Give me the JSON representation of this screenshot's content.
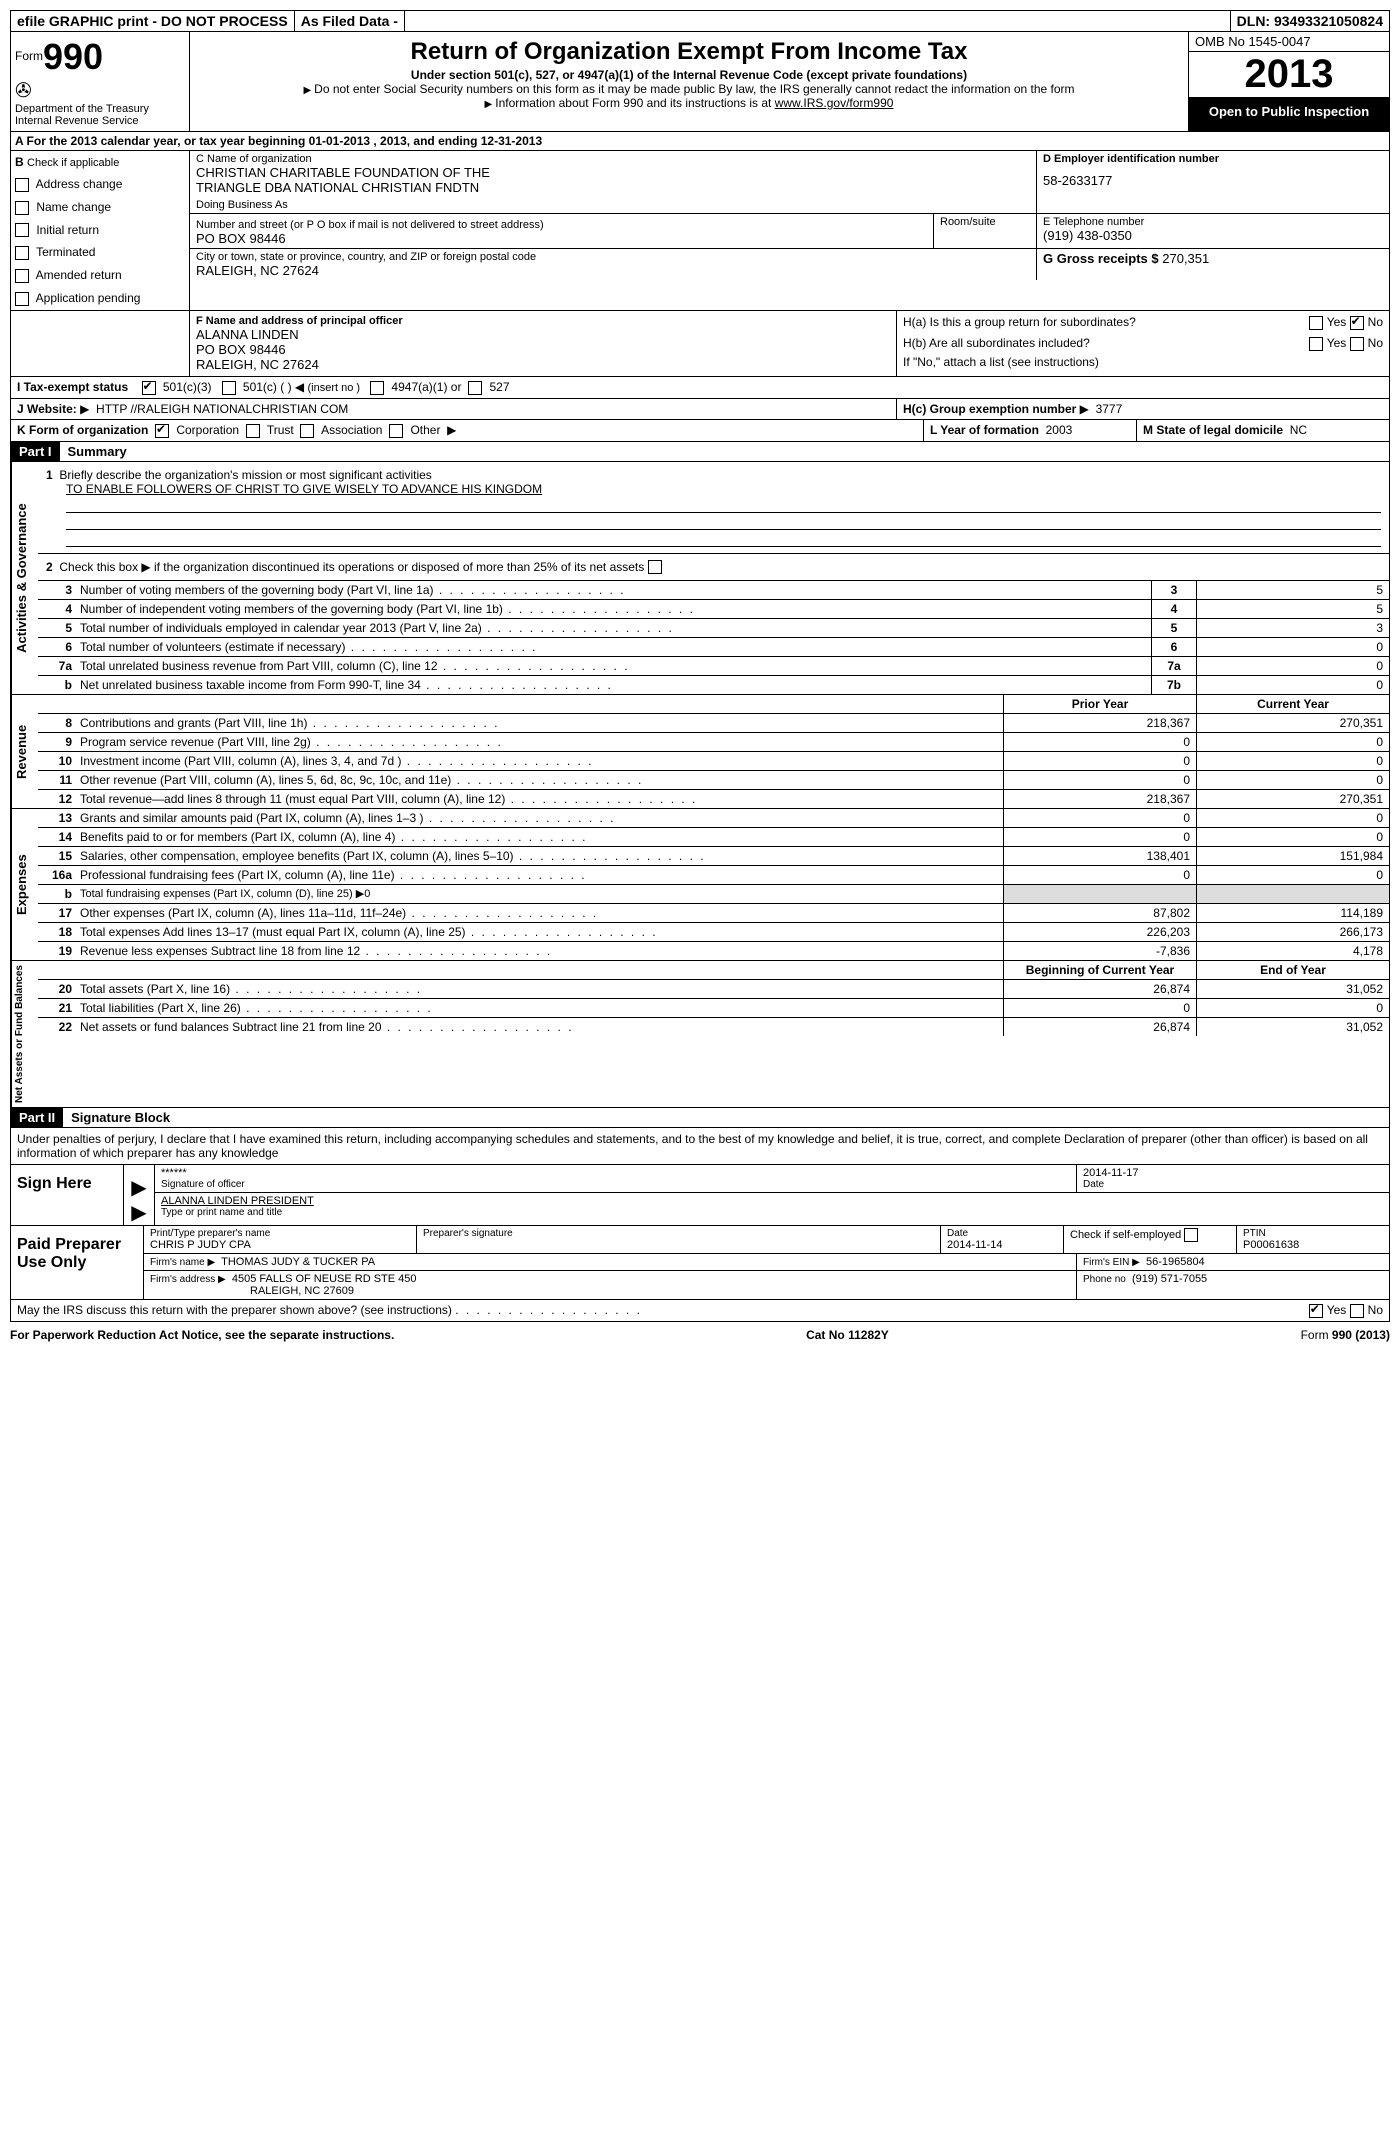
{
  "topbar": {
    "efile": "efile GRAPHIC print - DO NOT PROCESS",
    "asfiled": "As Filed Data -",
    "dln_label": "DLN:",
    "dln": "93493321050824"
  },
  "header": {
    "form_label": "Form",
    "form_num": "990",
    "dept": "Department of the Treasury",
    "irs": "Internal Revenue Service",
    "title": "Return of Organization Exempt From Income Tax",
    "sub1": "Under section 501(c), 527, or 4947(a)(1) of the Internal Revenue Code (except private foundations)",
    "sub2": "Do not enter Social Security numbers on this form as it may be made public  By law, the IRS generally cannot redact the information on the form",
    "sub3": "Information about Form 990 and its instructions is at ",
    "irs_link": "www.IRS.gov/form990",
    "omb": "OMB No  1545-0047",
    "year": "2013",
    "inspection": "Open to Public Inspection"
  },
  "rowA": "A  For the 2013 calendar year, or tax year beginning 01-01-2013    , 2013, and ending 12-31-2013",
  "B": {
    "label": "B",
    "check": "Check if applicable",
    "items": [
      "Address change",
      "Name change",
      "Initial return",
      "Terminated",
      "Amended return",
      "Application pending"
    ]
  },
  "C": {
    "label_name": "C Name of organization",
    "name1": "CHRISTIAN CHARITABLE FOUNDATION OF THE",
    "name2": "TRIANGLE DBA NATIONAL CHRISTIAN FNDTN",
    "dba": "Doing Business As",
    "addr_label": "Number and street (or P O  box if mail is not delivered to street address)",
    "room": "Room/suite",
    "addr": "PO BOX 98446",
    "city_label": "City or town, state or province, country, and ZIP or foreign postal code",
    "city": "RALEIGH, NC  27624"
  },
  "D": {
    "label": "D Employer identification number",
    "ein": "58-2633177"
  },
  "E": {
    "label": "E Telephone number",
    "phone": "(919) 438-0350"
  },
  "G": {
    "label": "G Gross receipts $",
    "amount": "270,351"
  },
  "F": {
    "label": "F   Name and address of principal officer",
    "name": "ALANNA LINDEN",
    "addr1": "PO BOX 98446",
    "addr2": "RALEIGH, NC  27624"
  },
  "H": {
    "a": "H(a)  Is this a group return for subordinates?",
    "b": "H(b)  Are all subordinates included?",
    "b_note": "If \"No,\" attach a list  (see instructions)",
    "c": "H(c)   Group exemption number",
    "c_val": "3777",
    "yes": "Yes",
    "no": "No"
  },
  "I": {
    "label": "I   Tax-exempt status",
    "opt1": "501(c)(3)",
    "opt2": "501(c) (   )",
    "opt2_note": "(insert no )",
    "opt3": "4947(a)(1) or",
    "opt4": "527"
  },
  "J": {
    "label": "J  Website:",
    "url": "HTTP //RALEIGH NATIONALCHRISTIAN COM"
  },
  "K": {
    "label": "K Form of organization",
    "opts": [
      "Corporation",
      "Trust",
      "Association",
      "Other"
    ]
  },
  "L": {
    "label": "L Year of formation",
    "val": "2003"
  },
  "M": {
    "label": "M State of legal domicile",
    "val": "NC"
  },
  "part1": {
    "label": "Part I",
    "title": "Summary"
  },
  "summary": {
    "vlabel1": "Activities & Governance",
    "l1_pre": "Briefly describe the organization's mission or most significant activities",
    "l1": "TO ENABLE FOLLOWERS OF CHRIST TO GIVE WISELY TO ADVANCE HIS KINGDOM",
    "l2": "Check this box ▶         if the organization discontinued its operations or disposed of more than 25% of its net assets",
    "l3": {
      "d": "Number of voting members of the governing body (Part VI, line 1a)",
      "n": "3",
      "v": "5"
    },
    "l4": {
      "d": "Number of independent voting members of the governing body (Part VI, line 1b)",
      "n": "4",
      "v": "5"
    },
    "l5": {
      "d": "Total number of individuals employed in calendar year 2013 (Part V, line 2a)",
      "n": "5",
      "v": "3"
    },
    "l6": {
      "d": "Total number of volunteers (estimate if necessary)",
      "n": "6",
      "v": "0"
    },
    "l7a": {
      "d": "Total unrelated business revenue from Part VIII, column (C), line 12",
      "n": "7a",
      "v": "0"
    },
    "l7b": {
      "d": "Net unrelated business taxable income from Form 990-T, line 34",
      "n": "7b",
      "v": "0"
    }
  },
  "revenue": {
    "vlabel": "Revenue",
    "h1": "Prior Year",
    "h2": "Current Year",
    "rows": [
      {
        "n": "8",
        "d": "Contributions and grants (Part VIII, line 1h)",
        "p": "218,367",
        "c": "270,351"
      },
      {
        "n": "9",
        "d": "Program service revenue (Part VIII, line 2g)",
        "p": "0",
        "c": "0"
      },
      {
        "n": "10",
        "d": "Investment income (Part VIII, column (A), lines 3, 4, and 7d )",
        "p": "0",
        "c": "0"
      },
      {
        "n": "11",
        "d": "Other revenue (Part VIII, column (A), lines 5, 6d, 8c, 9c, 10c, and 11e)",
        "p": "0",
        "c": "0"
      },
      {
        "n": "12",
        "d": "Total revenue—add lines 8 through 11 (must equal Part VIII, column (A), line 12)",
        "p": "218,367",
        "c": "270,351"
      }
    ]
  },
  "expenses": {
    "vlabel": "Expenses",
    "rows": [
      {
        "n": "13",
        "d": "Grants and similar amounts paid (Part IX, column (A), lines 1–3 )",
        "p": "0",
        "c": "0"
      },
      {
        "n": "14",
        "d": "Benefits paid to or for members (Part IX, column (A), line 4)",
        "p": "0",
        "c": "0"
      },
      {
        "n": "15",
        "d": "Salaries, other compensation, employee benefits (Part IX, column (A), lines 5–10)",
        "p": "138,401",
        "c": "151,984"
      },
      {
        "n": "16a",
        "d": "Professional fundraising fees (Part IX, column (A), line 11e)",
        "p": "0",
        "c": "0"
      },
      {
        "n": "b",
        "d": "Total fundraising expenses (Part IX, column (D), line 25) ▶0",
        "p": "",
        "c": "",
        "shade": true
      },
      {
        "n": "17",
        "d": "Other expenses (Part IX, column (A), lines 11a–11d, 11f–24e)",
        "p": "87,802",
        "c": "114,189"
      },
      {
        "n": "18",
        "d": "Total expenses  Add lines 13–17 (must equal Part IX, column (A), line 25)",
        "p": "226,203",
        "c": "266,173"
      },
      {
        "n": "19",
        "d": "Revenue less expenses  Subtract line 18 from line 12",
        "p": "-7,836",
        "c": "4,178"
      }
    ]
  },
  "netassets": {
    "vlabel": "Net Assets or Fund Balances",
    "h1": "Beginning of Current Year",
    "h2": "End of Year",
    "rows": [
      {
        "n": "20",
        "d": "Total assets (Part X, line 16)",
        "p": "26,874",
        "c": "31,052"
      },
      {
        "n": "21",
        "d": "Total liabilities (Part X, line 26)",
        "p": "0",
        "c": "0"
      },
      {
        "n": "22",
        "d": "Net assets or fund balances  Subtract line 21 from line 20",
        "p": "26,874",
        "c": "31,052"
      }
    ]
  },
  "part2": {
    "label": "Part II",
    "title": "Signature Block"
  },
  "perjury": "Under penalties of perjury, I declare that I have examined this return, including accompanying schedules and statements, and to the best of my knowledge and belief, it is true, correct, and complete  Declaration of preparer (other than officer) is based on all information of which preparer has any knowledge",
  "sign": {
    "label": "Sign Here",
    "stars": "******",
    "sig_of_officer": "Signature of officer",
    "date_label": "Date",
    "date": "2014-11-17",
    "name": "ALANNA LINDEN  PRESIDENT",
    "name_label": "Type or print name and title"
  },
  "paid": {
    "label": "Paid Preparer Use Only",
    "prep_name_label": "Print/Type preparer's name",
    "prep_name": "CHRIS P JUDY CPA",
    "prep_sig": "Preparer's signature",
    "date_label": "Date",
    "date": "2014-11-14",
    "check_label": "Check         if self-employed",
    "ptin_label": "PTIN",
    "ptin": "P00061638",
    "firm_name_label": "Firm's name   ▶",
    "firm_name": "THOMAS JUDY & TUCKER PA",
    "firm_ein_label": "Firm's EIN ▶",
    "firm_ein": "56-1965804",
    "firm_addr_label": "Firm's address ▶",
    "firm_addr1": "4505 FALLS OF NEUSE RD STE 450",
    "firm_addr2": "RALEIGH, NC  27609",
    "phone_label": "Phone no",
    "phone": "(919) 571-7055"
  },
  "discuss": "May the IRS discuss this return with the preparer shown above? (see instructions)",
  "footer": {
    "left": "For Paperwork Reduction Act Notice, see the separate instructions.",
    "mid": "Cat No  11282Y",
    "right": "Form 990 (2013)"
  }
}
